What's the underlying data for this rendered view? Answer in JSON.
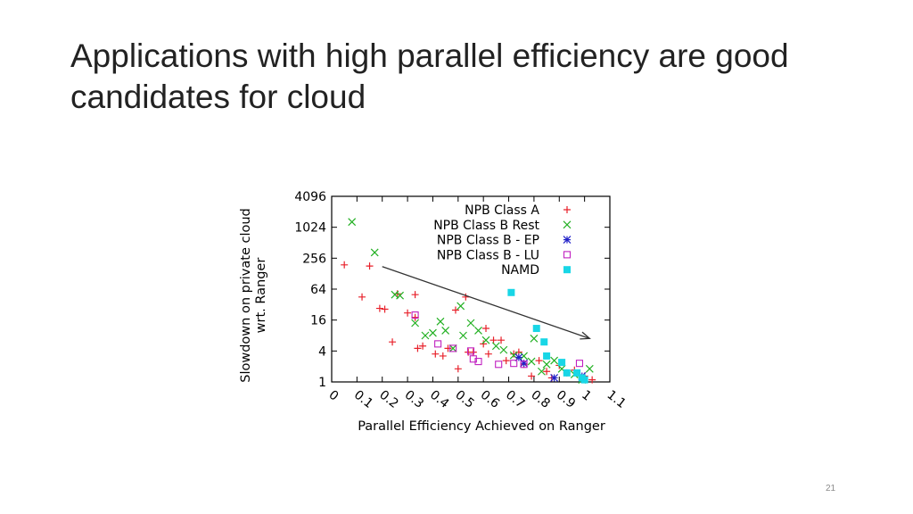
{
  "slide": {
    "title_line1": "Applications with high parallel efficiency are good",
    "title_line2": "candidates for cloud",
    "page_number": "21"
  },
  "chart_data": {
    "type": "scatter",
    "xlabel": "Parallel Efficiency Achieved on Ranger",
    "ylabel_lines": [
      "Slowdown on private cloud",
      "wrt. Ranger"
    ],
    "xlim": [
      0,
      1.1
    ],
    "ylim": [
      1,
      4096
    ],
    "y_scale": "log2",
    "x_ticks": [
      "0",
      "0.1",
      "0.2",
      "0.3",
      "0.4",
      "0.5",
      "0.6",
      "0.7",
      "0.8",
      "0.9",
      "1",
      "1.1"
    ],
    "y_ticks": [
      "4096",
      "1024",
      "256",
      "64",
      "16",
      "4",
      "1"
    ],
    "legend_position": "top-right",
    "trend_arrow": {
      "from": [
        0.2,
        176
      ],
      "to": [
        1.02,
        7
      ]
    },
    "series": [
      {
        "name": "NPB Class A",
        "marker": "plus",
        "color": "#e8202a",
        "points": [
          [
            0.05,
            190
          ],
          [
            0.12,
            45
          ],
          [
            0.15,
            180
          ],
          [
            0.19,
            27
          ],
          [
            0.21,
            26
          ],
          [
            0.24,
            6
          ],
          [
            0.26,
            52
          ],
          [
            0.3,
            22
          ],
          [
            0.33,
            50
          ],
          [
            0.33,
            18
          ],
          [
            0.34,
            4.5
          ],
          [
            0.36,
            5
          ],
          [
            0.41,
            3.5
          ],
          [
            0.44,
            3.2
          ],
          [
            0.46,
            4.5
          ],
          [
            0.49,
            25
          ],
          [
            0.5,
            1.8
          ],
          [
            0.53,
            45
          ],
          [
            0.54,
            3.8
          ],
          [
            0.56,
            3.8
          ],
          [
            0.6,
            5.5
          ],
          [
            0.61,
            11
          ],
          [
            0.62,
            3.5
          ],
          [
            0.64,
            6.5
          ],
          [
            0.67,
            6.5
          ],
          [
            0.69,
            2.6
          ],
          [
            0.72,
            3.5
          ],
          [
            0.74,
            3.8
          ],
          [
            0.76,
            2.2
          ],
          [
            0.79,
            1.3
          ],
          [
            0.82,
            2.6
          ],
          [
            0.85,
            1.6
          ],
          [
            0.87,
            1.2
          ],
          [
            0.9,
            2.1
          ],
          [
            0.93,
            1.5
          ],
          [
            0.96,
            1.7
          ],
          [
            1.0,
            1.3
          ],
          [
            1.03,
            1.1
          ]
        ]
      },
      {
        "name": "NPB Class B Rest",
        "marker": "cross",
        "color": "#22b022",
        "points": [
          [
            0.08,
            1300
          ],
          [
            0.17,
            330
          ],
          [
            0.25,
            50
          ],
          [
            0.27,
            48
          ],
          [
            0.33,
            14
          ],
          [
            0.37,
            8
          ],
          [
            0.4,
            9
          ],
          [
            0.43,
            15
          ],
          [
            0.45,
            10
          ],
          [
            0.48,
            4.5
          ],
          [
            0.51,
            30
          ],
          [
            0.52,
            8
          ],
          [
            0.55,
            14
          ],
          [
            0.58,
            10
          ],
          [
            0.61,
            6.5
          ],
          [
            0.65,
            5
          ],
          [
            0.68,
            4.2
          ],
          [
            0.72,
            3.3
          ],
          [
            0.76,
            3.2
          ],
          [
            0.79,
            2.5
          ],
          [
            0.8,
            7
          ],
          [
            0.83,
            1.6
          ],
          [
            0.85,
            2.2
          ],
          [
            0.88,
            2.6
          ],
          [
            0.91,
            1.8
          ],
          [
            0.96,
            1.4
          ],
          [
            0.99,
            1.1
          ],
          [
            1.02,
            1.8
          ]
        ]
      },
      {
        "name": "NPB Class B - EP",
        "marker": "star",
        "color": "#2323c8",
        "points": [
          [
            0.74,
            3
          ],
          [
            0.76,
            2.3
          ],
          [
            0.88,
            1.2
          ],
          [
            0.99,
            1.3
          ]
        ]
      },
      {
        "name": "NPB Class B - LU",
        "marker": "open-square",
        "color": "#c020c0",
        "points": [
          [
            0.33,
            20
          ],
          [
            0.42,
            5.5
          ],
          [
            0.48,
            4.5
          ],
          [
            0.55,
            4
          ],
          [
            0.56,
            2.8
          ],
          [
            0.58,
            2.5
          ],
          [
            0.66,
            2.2
          ],
          [
            0.72,
            2.3
          ],
          [
            0.76,
            2.2
          ],
          [
            0.98,
            2.3
          ]
        ]
      },
      {
        "name": "NAMD",
        "marker": "filled-square",
        "color": "#18d6e6",
        "points": [
          [
            0.71,
            55
          ],
          [
            0.81,
            11
          ],
          [
            0.84,
            6
          ],
          [
            0.85,
            3.2
          ],
          [
            0.91,
            2.4
          ],
          [
            0.93,
            1.5
          ],
          [
            0.97,
            1.5
          ],
          [
            0.99,
            1.2
          ],
          [
            1.0,
            1.1
          ]
        ]
      }
    ]
  }
}
